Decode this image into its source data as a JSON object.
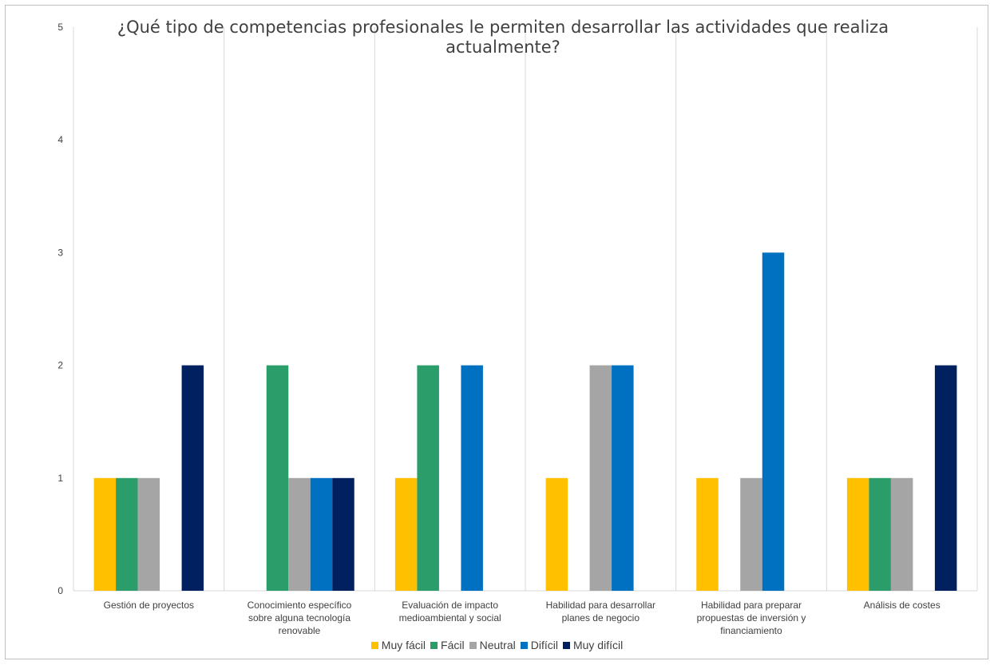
{
  "chart_data": {
    "type": "bar",
    "title_lines": [
      "¿Qué tipo de competencias profesionales le permiten desarrollar las actividades que realiza",
      "actualmente?"
    ],
    "categories": [
      [
        "Gestión de proyectos"
      ],
      [
        "Conocimiento específico",
        "sobre alguna tecnología",
        "renovable"
      ],
      [
        "Evaluación de impacto",
        "medioambiental y social"
      ],
      [
        "Habilidad para desarrollar",
        "planes de negocio"
      ],
      [
        "Habilidad para preparar",
        "propuestas de inversión y",
        "financiamiento"
      ],
      [
        "Análisis de costes"
      ]
    ],
    "series": [
      {
        "name": "Muy fácil",
        "color": "#FFC000",
        "values": [
          1,
          0,
          1,
          1,
          1,
          1
        ]
      },
      {
        "name": "Fácil",
        "color": "#2A9D6B",
        "values": [
          1,
          2,
          2,
          0,
          0,
          1
        ]
      },
      {
        "name": "Neutral",
        "color": "#A5A5A5",
        "values": [
          1,
          1,
          0,
          2,
          1,
          1
        ]
      },
      {
        "name": "Difícil",
        "color": "#0070C0",
        "values": [
          0,
          1,
          2,
          2,
          3,
          0
        ]
      },
      {
        "name": "Muy difícil",
        "color": "#002060",
        "values": [
          2,
          1,
          0,
          0,
          0,
          2
        ]
      }
    ],
    "y_ticks": [
      "0",
      "1",
      "2",
      "3",
      "4",
      "5"
    ],
    "ylim": [
      0,
      5
    ],
    "grid": "vertical separators between categories",
    "legend_position": "bottom"
  }
}
